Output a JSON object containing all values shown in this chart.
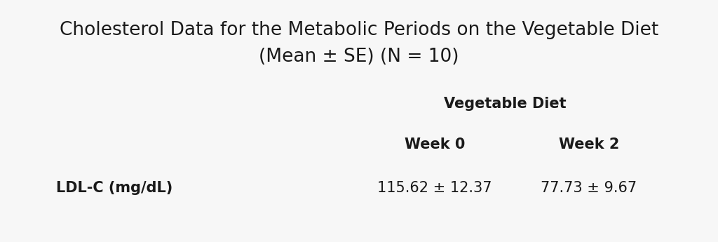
{
  "title_line1": "Cholesterol Data for the Metabolic Periods on the Vegetable Diet",
  "title_line2": "(Mean ± SE) (N = 10)",
  "section_header": "Vegetable Diet",
  "col1_header": "Week 0",
  "col2_header": "Week 2",
  "row_label": "LDL-C (mg/dL)",
  "val1": "115.62 ± 12.37",
  "val2": "77.73 ± 9.67",
  "bg_color": "#f7f7f7",
  "text_color": "#1a1a1a",
  "title_fontsize": 19,
  "header_fontsize": 15,
  "subheader_fontsize": 15,
  "data_fontsize": 15,
  "row_label_fontsize": 15
}
